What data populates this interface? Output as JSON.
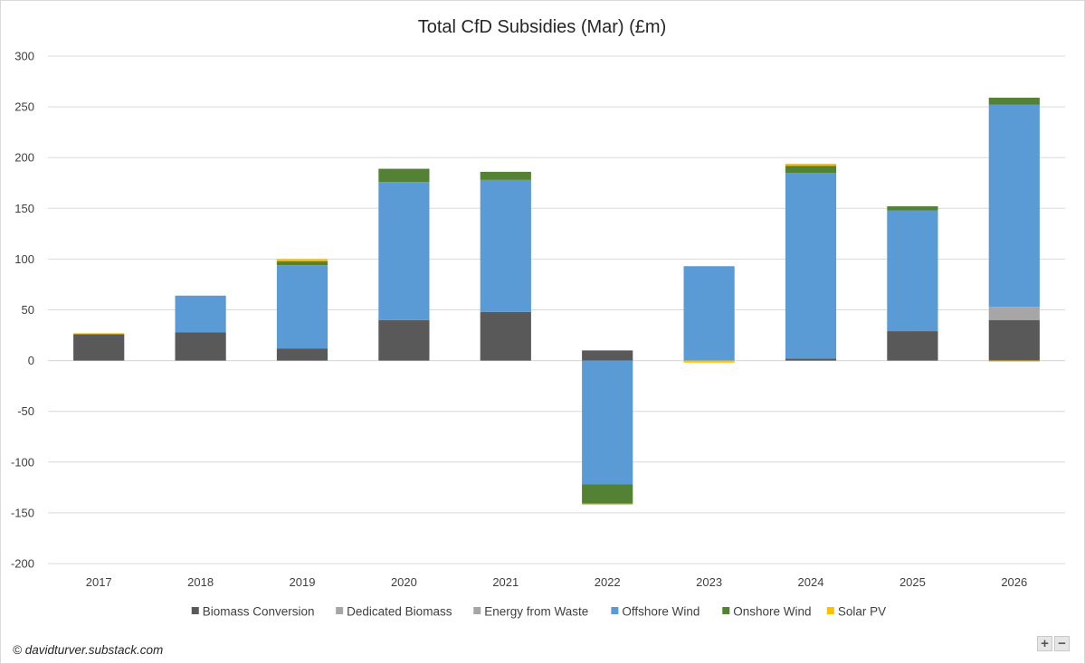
{
  "chart_data": {
    "type": "bar",
    "stacked": true,
    "title": "Total CfD Subsidies (Mar) (£m)",
    "xlabel": "",
    "ylabel": "",
    "ylim": [
      -200,
      300
    ],
    "yticks": [
      300,
      250,
      200,
      150,
      100,
      50,
      0,
      -50,
      -100,
      -150,
      -200
    ],
    "grid": true,
    "legend_position": "bottom",
    "categories": [
      "2017",
      "2018",
      "2019",
      "2020",
      "2021",
      "2022",
      "2023",
      "2024",
      "2025",
      "2026"
    ],
    "series": [
      {
        "name": "Biomass Conversion",
        "color": "#595959",
        "values": [
          26,
          28,
          12,
          40,
          48,
          10,
          0,
          2,
          29,
          40
        ]
      },
      {
        "name": "Dedicated Biomass",
        "color": "#a6a6a6",
        "values": [
          0,
          0,
          0,
          0,
          0,
          0,
          0,
          0,
          0,
          13
        ]
      },
      {
        "name": "Energy from Waste",
        "color": "#a5a5a5",
        "values": [
          0,
          0,
          0,
          0,
          0,
          0,
          0,
          0,
          0,
          0
        ]
      },
      {
        "name": "Offshore Wind",
        "color": "#5b9bd5",
        "values": [
          0,
          36,
          82,
          136,
          130,
          -122,
          93,
          183,
          119,
          199
        ]
      },
      {
        "name": "Onshore Wind",
        "color": "#548235",
        "values": [
          0,
          0,
          4,
          13,
          8,
          -19,
          0,
          7,
          4,
          7
        ]
      },
      {
        "name": "Solar PV",
        "color": "#ffc000",
        "values": [
          1,
          0,
          2,
          0,
          0,
          -1,
          -2,
          2,
          0,
          -1
        ]
      }
    ]
  },
  "footer": {
    "copyright": "© davidturver.substack.com"
  },
  "controls": {
    "zoom_in": "+",
    "zoom_out": "−"
  }
}
